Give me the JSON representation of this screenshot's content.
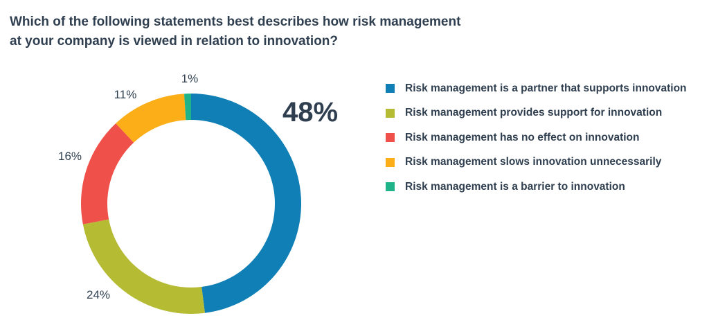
{
  "chart_data": {
    "type": "pie",
    "variant": "donut",
    "title": "Which of the following statements best describes how risk management at your company is viewed in relation to innovation?",
    "title_lines": [
      "Which of the following statements best describes how risk management",
      "at your company is viewed in relation to innovation?"
    ],
    "legend_position": "right",
    "slices": [
      {
        "label": "Risk management is a partner that supports innovation",
        "value": 48,
        "display": "48%",
        "color": "#0f7fb5"
      },
      {
        "label": "Risk management provides support for innovation",
        "value": 24,
        "display": "24%",
        "color": "#b5bb33"
      },
      {
        "label": "Risk management has no effect on innovation",
        "value": 16,
        "display": "16%",
        "color": "#f0504a"
      },
      {
        "label": "Risk management slows innovation unnecessarily",
        "value": 11,
        "display": "11%",
        "color": "#fbae17"
      },
      {
        "label": "Risk management is a barrier to innovation",
        "value": 1,
        "display": "1%",
        "color": "#1fb38a"
      }
    ]
  }
}
